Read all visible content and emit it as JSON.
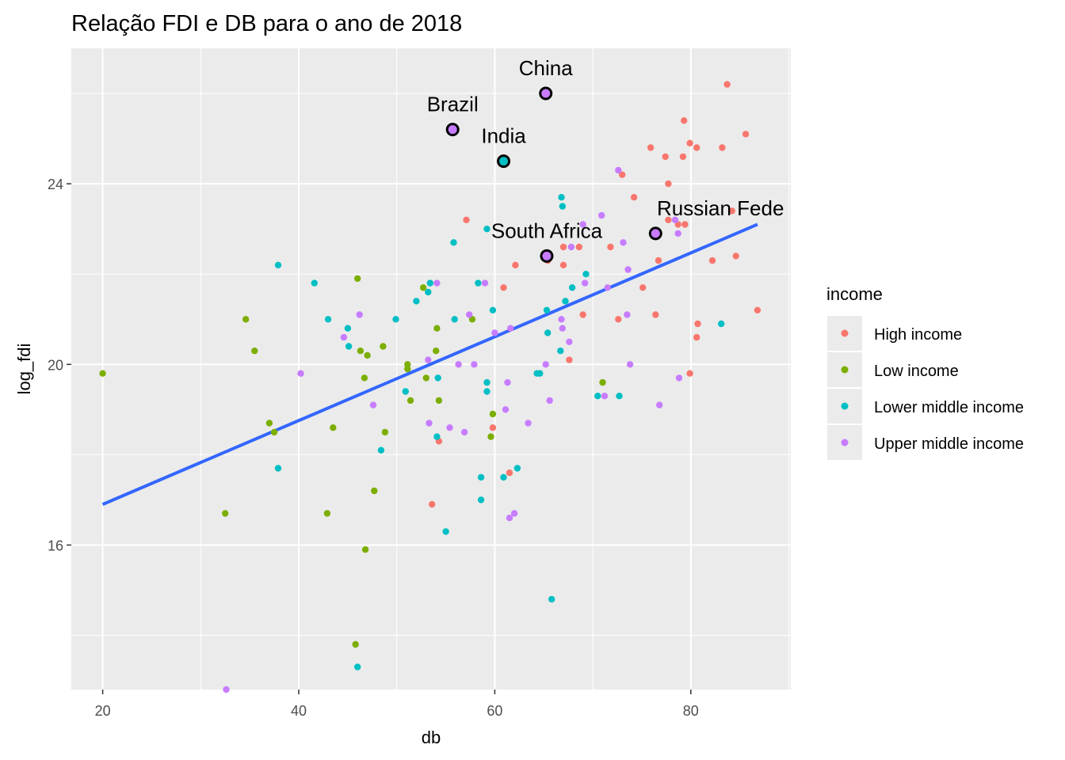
{
  "colors": {
    "panel_bg": "#EBEBEB",
    "grid_major": "#FFFFFF",
    "axis_text": "#4D4D4D",
    "fit_line": "#3366FF",
    "High income": "#F8766D",
    "Low income": "#7CAE00",
    "Lower middle income": "#00BFC4",
    "Upper middle income": "#C77CFF"
  },
  "chart_data": {
    "type": "scatter",
    "title": "Relação FDI e DB para o ano de 2018",
    "xlabel": "db",
    "ylabel": "log_fdi",
    "xlim": [
      16.8,
      90.2
    ],
    "ylim": [
      12.8,
      27.0
    ],
    "x_ticks": [
      20,
      40,
      60,
      80
    ],
    "y_ticks": [
      16,
      20,
      24
    ],
    "grid": true,
    "legend": {
      "title": "income",
      "position": "right",
      "entries": [
        "High income",
        "Low income",
        "Lower middle income",
        "Upper middle income"
      ]
    },
    "fit_line": {
      "method": "linear",
      "x": [
        20.0,
        86.8
      ],
      "y": [
        16.9,
        23.1
      ]
    },
    "annotations": [
      {
        "label": "China",
        "x": 65.2,
        "y": 26.0,
        "color": "Upper middle income"
      },
      {
        "label": "Brazil",
        "x": 55.7,
        "y": 25.2,
        "color": "Upper middle income"
      },
      {
        "label": "India",
        "x": 60.9,
        "y": 24.5,
        "color": "Lower middle income"
      },
      {
        "label": "Russian Fede",
        "x": 76.4,
        "y": 22.9,
        "color": "Upper middle income"
      },
      {
        "label": "South Africa",
        "x": 65.3,
        "y": 22.4,
        "color": "Upper middle income"
      }
    ],
    "series": [
      {
        "name": "High income",
        "points": [
          [
            83.7,
            26.2
          ],
          [
            85.6,
            25.1
          ],
          [
            79.3,
            25.4
          ],
          [
            75.9,
            24.8
          ],
          [
            77.4,
            24.6
          ],
          [
            79.2,
            24.6
          ],
          [
            79.9,
            24.9
          ],
          [
            80.6,
            24.8
          ],
          [
            83.2,
            24.8
          ],
          [
            77.7,
            24.0
          ],
          [
            73.0,
            24.2
          ],
          [
            74.2,
            23.7
          ],
          [
            84.2,
            23.4
          ],
          [
            77.7,
            23.2
          ],
          [
            78.7,
            23.1
          ],
          [
            79.4,
            23.1
          ],
          [
            57.1,
            23.2
          ],
          [
            67.0,
            22.6
          ],
          [
            68.6,
            22.6
          ],
          [
            71.8,
            22.6
          ],
          [
            84.6,
            22.4
          ],
          [
            76.7,
            22.3
          ],
          [
            82.2,
            22.3
          ],
          [
            65.4,
            22.3
          ],
          [
            67.0,
            22.2
          ],
          [
            62.1,
            22.2
          ],
          [
            60.9,
            21.7
          ],
          [
            75.1,
            21.7
          ],
          [
            69.0,
            21.1
          ],
          [
            76.4,
            21.1
          ],
          [
            86.8,
            21.2
          ],
          [
            72.6,
            21.0
          ],
          [
            80.7,
            20.9
          ],
          [
            80.6,
            20.6
          ],
          [
            67.6,
            20.1
          ],
          [
            79.9,
            19.8
          ],
          [
            59.8,
            18.6
          ],
          [
            54.3,
            18.3
          ],
          [
            61.5,
            17.6
          ],
          [
            53.6,
            16.9
          ]
        ]
      },
      {
        "name": "Low income",
        "points": [
          [
            20.0,
            19.8
          ],
          [
            34.6,
            21.0
          ],
          [
            35.5,
            20.3
          ],
          [
            32.5,
            16.7
          ],
          [
            37.0,
            18.7
          ],
          [
            37.5,
            18.5
          ],
          [
            43.5,
            18.6
          ],
          [
            46.0,
            21.9
          ],
          [
            46.3,
            20.3
          ],
          [
            47.0,
            20.2
          ],
          [
            48.6,
            20.4
          ],
          [
            46.7,
            19.7
          ],
          [
            48.8,
            18.5
          ],
          [
            47.7,
            17.2
          ],
          [
            46.8,
            15.9
          ],
          [
            45.8,
            13.8
          ],
          [
            42.9,
            16.7
          ],
          [
            52.7,
            21.7
          ],
          [
            51.1,
            20.0
          ],
          [
            51.1,
            19.9
          ],
          [
            51.4,
            19.2
          ],
          [
            53.0,
            19.7
          ],
          [
            54.1,
            20.8
          ],
          [
            54.0,
            20.3
          ],
          [
            54.3,
            19.2
          ],
          [
            57.7,
            21.0
          ],
          [
            59.8,
            18.9
          ],
          [
            59.6,
            18.4
          ],
          [
            71.0,
            19.6
          ]
        ]
      },
      {
        "name": "Lower middle income",
        "points": [
          [
            37.9,
            22.2
          ],
          [
            41.6,
            21.8
          ],
          [
            43.0,
            21.0
          ],
          [
            45.0,
            20.8
          ],
          [
            45.1,
            20.4
          ],
          [
            49.9,
            21.0
          ],
          [
            52.0,
            21.4
          ],
          [
            53.2,
            21.6
          ],
          [
            53.4,
            21.8
          ],
          [
            55.8,
            22.7
          ],
          [
            55.9,
            21.0
          ],
          [
            58.3,
            21.8
          ],
          [
            59.2,
            23.0
          ],
          [
            59.8,
            21.2
          ],
          [
            50.9,
            19.4
          ],
          [
            54.2,
            19.7
          ],
          [
            59.2,
            19.6
          ],
          [
            59.2,
            19.4
          ],
          [
            54.1,
            18.4
          ],
          [
            48.4,
            18.1
          ],
          [
            37.9,
            17.7
          ],
          [
            58.6,
            17.5
          ],
          [
            60.9,
            17.5
          ],
          [
            62.3,
            17.7
          ],
          [
            58.6,
            17.0
          ],
          [
            55.0,
            16.3
          ],
          [
            46.0,
            13.3
          ],
          [
            66.8,
            23.7
          ],
          [
            66.9,
            23.5
          ],
          [
            65.3,
            21.2
          ],
          [
            65.4,
            20.7
          ],
          [
            66.7,
            20.3
          ],
          [
            64.3,
            19.8
          ],
          [
            64.6,
            19.8
          ],
          [
            67.2,
            21.4
          ],
          [
            67.9,
            21.7
          ],
          [
            69.3,
            22.0
          ],
          [
            70.5,
            19.3
          ],
          [
            72.7,
            19.3
          ],
          [
            83.1,
            20.9
          ],
          [
            65.8,
            14.8
          ]
        ]
      },
      {
        "name": "Upper middle income",
        "points": [
          [
            32.6,
            12.8
          ],
          [
            40.2,
            19.8
          ],
          [
            44.6,
            20.6
          ],
          [
            46.2,
            21.1
          ],
          [
            47.6,
            19.1
          ],
          [
            53.3,
            18.7
          ],
          [
            53.2,
            20.1
          ],
          [
            54.1,
            21.8
          ],
          [
            55.4,
            18.6
          ],
          [
            56.3,
            20.0
          ],
          [
            56.9,
            18.5
          ],
          [
            57.4,
            21.1
          ],
          [
            57.9,
            20.0
          ],
          [
            59.0,
            21.8
          ],
          [
            60.0,
            20.7
          ],
          [
            61.1,
            19.0
          ],
          [
            61.3,
            19.6
          ],
          [
            61.6,
            20.8
          ],
          [
            61.5,
            16.6
          ],
          [
            62.0,
            16.7
          ],
          [
            63.4,
            18.7
          ],
          [
            65.2,
            20.0
          ],
          [
            65.6,
            19.2
          ],
          [
            66.8,
            21.0
          ],
          [
            66.9,
            20.8
          ],
          [
            67.6,
            20.5
          ],
          [
            67.8,
            22.6
          ],
          [
            69.0,
            23.1
          ],
          [
            69.2,
            21.8
          ],
          [
            70.9,
            23.3
          ],
          [
            71.5,
            21.7
          ],
          [
            71.2,
            19.3
          ],
          [
            72.6,
            24.3
          ],
          [
            73.1,
            22.7
          ],
          [
            73.6,
            22.1
          ],
          [
            73.5,
            21.1
          ],
          [
            73.8,
            20.0
          ],
          [
            76.8,
            19.1
          ],
          [
            78.7,
            22.9
          ],
          [
            78.8,
            19.7
          ],
          [
            78.4,
            23.2
          ]
        ]
      }
    ]
  }
}
